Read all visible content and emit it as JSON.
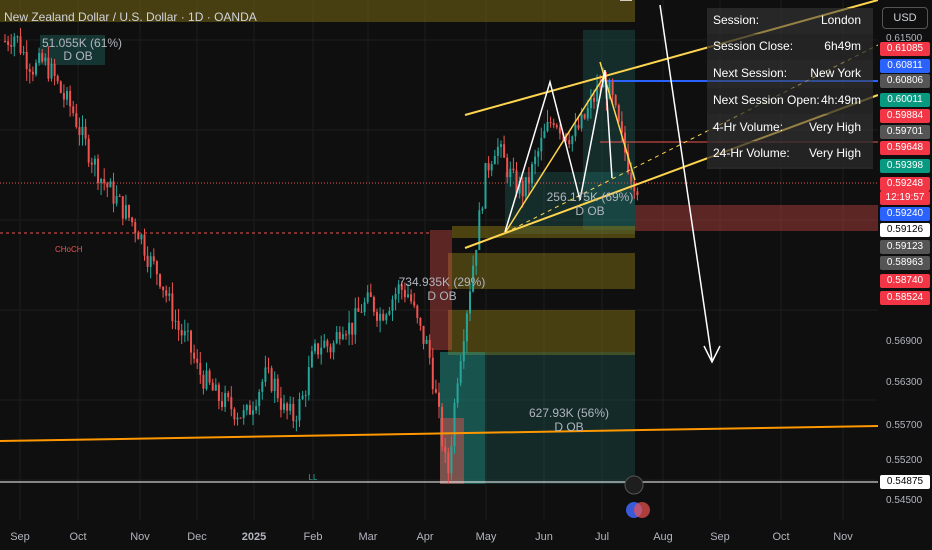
{
  "header": {
    "title": "New Zealand Dollar / U.S. Dollar · 1D · OANDA"
  },
  "currency_button": "USD",
  "session_panel": [
    {
      "key": "Session:",
      "value": "London"
    },
    {
      "key": "Session Close:",
      "value": "6h49m"
    },
    {
      "key": "Next Session:",
      "value": "New York"
    },
    {
      "key": "Next Session Open:",
      "value": "4h:49m"
    },
    {
      "key": "4-Hr Volume:",
      "value": "Very High"
    },
    {
      "key": "24-Hr Volume:",
      "value": "Very High"
    }
  ],
  "colors": {
    "bull": "#26a69a",
    "bear": "#ef5350",
    "trend": "#ffd54f",
    "support": "#ff9800"
  },
  "chart_data": {
    "type": "candlestick",
    "y_axis": {
      "ticks": [
        "0.61500",
        "0.56900",
        "0.56300",
        "0.55700",
        "0.55200",
        "0.54500"
      ],
      "range": [
        0.544,
        0.62
      ]
    },
    "x_axis": {
      "ticks": [
        "Sep",
        "Oct",
        "Nov",
        "Dec",
        "2025",
        "Feb",
        "Mar",
        "Apr",
        "May",
        "Jun",
        "Jul",
        "Aug",
        "Sep",
        "Oct",
        "Nov"
      ]
    },
    "price_labels": [
      {
        "value": "0.61085",
        "color": "#f23645"
      },
      {
        "value": "0.60811",
        "color": "#2962ff"
      },
      {
        "value": "0.60806",
        "color": "#555555"
      },
      {
        "value": "0.60011",
        "color": "#089981"
      },
      {
        "value": "0.59884",
        "color": "#f23645"
      },
      {
        "value": "0.59701",
        "color": "#555555"
      },
      {
        "value": "0.59648",
        "color": "#f23645"
      },
      {
        "value": "0.59398",
        "color": "#089981"
      },
      {
        "value": "0.59248",
        "color": "#f23645"
      },
      {
        "value": "12:19:57",
        "color": "#f23645"
      },
      {
        "value": "0.59240",
        "color": "#2962ff"
      },
      {
        "value": "0.59126",
        "color": "#ffffff"
      },
      {
        "value": "0.59123",
        "color": "#555555"
      },
      {
        "value": "0.58963",
        "color": "#555555"
      },
      {
        "value": "0.58740",
        "color": "#f23645"
      },
      {
        "value": "0.58524",
        "color": "#f23645"
      },
      {
        "value": "0.54875",
        "color": "#ffffff"
      }
    ],
    "annotations": [
      {
        "text": "51.055K (61%)"
      },
      {
        "text": "D OB"
      },
      {
        "text": "CHoCH"
      },
      {
        "text": "734.935K (29%)"
      },
      {
        "text": "D OB"
      },
      {
        "text": "256.175K (69%)"
      },
      {
        "text": "D OB"
      },
      {
        "text": "627.93K (56%)"
      },
      {
        "text": "D OB"
      },
      {
        "text": "LL"
      }
    ],
    "ohlc_path": [
      0.614,
      0.615,
      0.612,
      0.61,
      0.611,
      0.609,
      0.606,
      0.604,
      0.6,
      0.597,
      0.594,
      0.592,
      0.59,
      0.588,
      0.586,
      0.582,
      0.58,
      0.576,
      0.572,
      0.57,
      0.566,
      0.564,
      0.562,
      0.561,
      0.56,
      0.559,
      0.562,
      0.565,
      0.564,
      0.56,
      0.559,
      0.562,
      0.568,
      0.57,
      0.569,
      0.573,
      0.572,
      0.575,
      0.576,
      0.574,
      0.576,
      0.578,
      0.577,
      0.572,
      0.569,
      0.56,
      0.55,
      0.565,
      0.575,
      0.585,
      0.595,
      0.599,
      0.596,
      0.593,
      0.592,
      0.596,
      0.6,
      0.603,
      0.601,
      0.6,
      0.602,
      0.605,
      0.608,
      0.606,
      0.6,
      0.595,
      0.592
    ]
  }
}
